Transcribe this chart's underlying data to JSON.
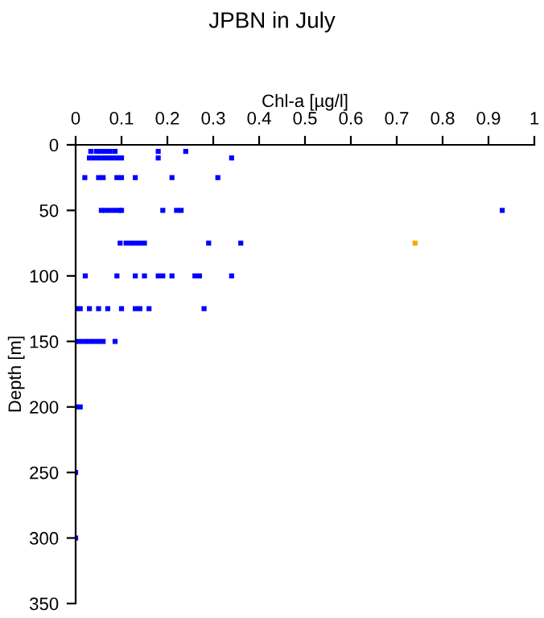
{
  "chart_data": {
    "type": "scatter",
    "title": "JPBN in July",
    "xlabel": "Chl-a [µg/l]",
    "ylabel": "Depth [m]",
    "xlim": [
      0,
      1
    ],
    "xticks": [
      0,
      0.1,
      0.2,
      0.3,
      0.4,
      0.5,
      0.6,
      0.7,
      0.8,
      0.9,
      1
    ],
    "ylim": [
      350,
      0
    ],
    "yticks": [
      0,
      50,
      100,
      150,
      200,
      250,
      300,
      350
    ],
    "marker": "square",
    "grid": false,
    "series": [
      {
        "color": "#0000ff",
        "x": [
          0.033,
          0.045,
          0.055,
          0.065,
          0.075,
          0.086,
          0.18,
          0.24,
          0.03,
          0.04,
          0.05,
          0.06,
          0.07,
          0.08,
          0.09,
          0.1,
          0.18,
          0.34,
          0.02,
          0.05,
          0.06,
          0.09,
          0.1,
          0.13,
          0.21,
          0.31,
          0.056,
          0.065,
          0.075,
          0.085,
          0.095,
          0.1,
          0.19,
          0.22,
          0.23,
          0.93,
          0.097,
          0.11,
          0.12,
          0.13,
          0.14,
          0.15,
          0.29,
          0.36,
          0.021,
          0.09,
          0.13,
          0.15,
          0.18,
          0.19,
          0.21,
          0.26,
          0.27,
          0.34,
          0.0,
          0.01,
          0.03,
          0.05,
          0.07,
          0.1,
          0.13,
          0.14,
          0.16,
          0.28,
          0.0,
          0.01,
          0.02,
          0.03,
          0.04,
          0.05,
          0.06,
          0.086,
          0.0,
          0.01,
          0.0,
          0.0
        ],
        "values": [
          5,
          5,
          5,
          5,
          5,
          5,
          5,
          5,
          10,
          10,
          10,
          10,
          10,
          10,
          10,
          10,
          10,
          10,
          25,
          25,
          25,
          25,
          25,
          25,
          25,
          25,
          50,
          50,
          50,
          50,
          50,
          50,
          50,
          50,
          50,
          50,
          75,
          75,
          75,
          75,
          75,
          75,
          75,
          75,
          100,
          100,
          100,
          100,
          100,
          100,
          100,
          100,
          100,
          100,
          125,
          125,
          125,
          125,
          125,
          125,
          125,
          125,
          125,
          125,
          150,
          150,
          150,
          150,
          150,
          150,
          150,
          150,
          200,
          200,
          250,
          300
        ]
      },
      {
        "color": "#ffa500",
        "x": [
          0.74
        ],
        "values": [
          75
        ]
      }
    ]
  }
}
